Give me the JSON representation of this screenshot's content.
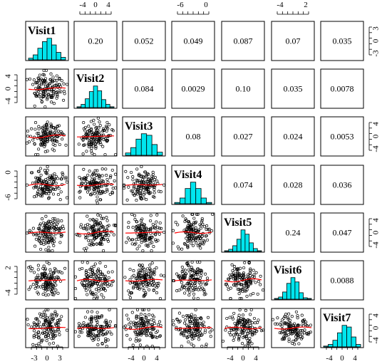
{
  "chart_data": {
    "type": "scatter",
    "variables": [
      "Visit1",
      "Visit2",
      "Visit3",
      "Visit4",
      "Visit5",
      "Visit6",
      "Visit7"
    ],
    "correlations": [
      [
        "",
        "0.20",
        "0.052",
        "0.049",
        "0.087",
        "0.07",
        "0.035"
      ],
      [
        "",
        "",
        "0.084",
        "0.0029",
        "0.10",
        "0.035",
        "0.0078"
      ],
      [
        "",
        "",
        "",
        "0.08",
        "0.027",
        "0.024",
        "0.0053"
      ],
      [
        "",
        "",
        "",
        "",
        "0.074",
        "0.028",
        "0.036"
      ],
      [
        "",
        "",
        "",
        "",
        "",
        "0.24",
        "0.047"
      ],
      [
        "",
        "",
        "",
        "",
        "",
        "",
        "0.0088"
      ],
      [
        "",
        "",
        "",
        "",
        "",
        "",
        ""
      ]
    ],
    "histograms": [
      [
        2,
        6,
        14,
        22,
        26,
        18,
        9,
        3
      ],
      [
        1,
        4,
        11,
        20,
        27,
        21,
        10,
        4,
        1
      ],
      [
        3,
        10,
        21,
        28,
        26,
        14,
        4
      ],
      [
        2,
        9,
        24,
        34,
        24,
        9,
        2
      ],
      [
        1,
        3,
        8,
        17,
        30,
        24,
        12,
        4,
        1
      ],
      [
        1,
        3,
        10,
        22,
        30,
        24,
        9,
        2,
        1
      ],
      [
        1,
        3,
        8,
        17,
        26,
        24,
        12,
        3
      ]
    ],
    "axis_ticks": {
      "top": {
        "Visit2": [
          "-4",
          "0",
          "4"
        ],
        "Visit4": [
          "-6",
          "0"
        ],
        "Visit6": [
          "-4",
          "2"
        ]
      },
      "bottom": {
        "Visit1": [
          "-3",
          "0",
          "3"
        ],
        "Visit3": [
          "-4",
          "0",
          "4"
        ],
        "Visit5": [
          "-4",
          "0",
          "4"
        ],
        "Visit7": [
          "-4",
          "0",
          "4"
        ]
      },
      "left": {
        "Visit2": [
          "4",
          "0",
          "-4"
        ],
        "Visit4": [
          "0",
          "-6"
        ],
        "Visit6": [
          "2",
          "-4"
        ]
      },
      "right": {
        "Visit1": [
          "3",
          "0",
          "-3"
        ],
        "Visit3": [
          "4",
          "0",
          "-4"
        ],
        "Visit5": [
          "4",
          "0",
          "-4"
        ],
        "Visit7": [
          "4",
          "0",
          "-4"
        ]
      }
    },
    "colors": {
      "histogram_fill": "#00e5ee",
      "smooth_line": "#ff0000",
      "points": "#000000",
      "panel_border": "#000000"
    },
    "lower_panel": "scatter with loess smooth line",
    "upper_panel": "pairwise correlation coefficient",
    "diagonal_panel": "histogram with variable name"
  }
}
